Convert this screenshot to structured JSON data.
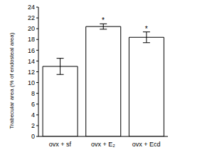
{
  "chart_data": {
    "type": "bar",
    "categories": [
      "ovx + sf",
      "ovx + E₂",
      "ovx + Ecd"
    ],
    "values": [
      13.0,
      20.4,
      18.4
    ],
    "errors": [
      1.5,
      0.5,
      1.0
    ],
    "significance": [
      null,
      "*",
      "*"
    ],
    "color": "#ffffff",
    "ylabel": "Trabecular area (% of endosteal area)",
    "ylim": [
      0,
      24
    ],
    "yticks": [
      0,
      2,
      4,
      6,
      8,
      10,
      12,
      14,
      16,
      18,
      20,
      22,
      24
    ],
    "grid": false
  }
}
